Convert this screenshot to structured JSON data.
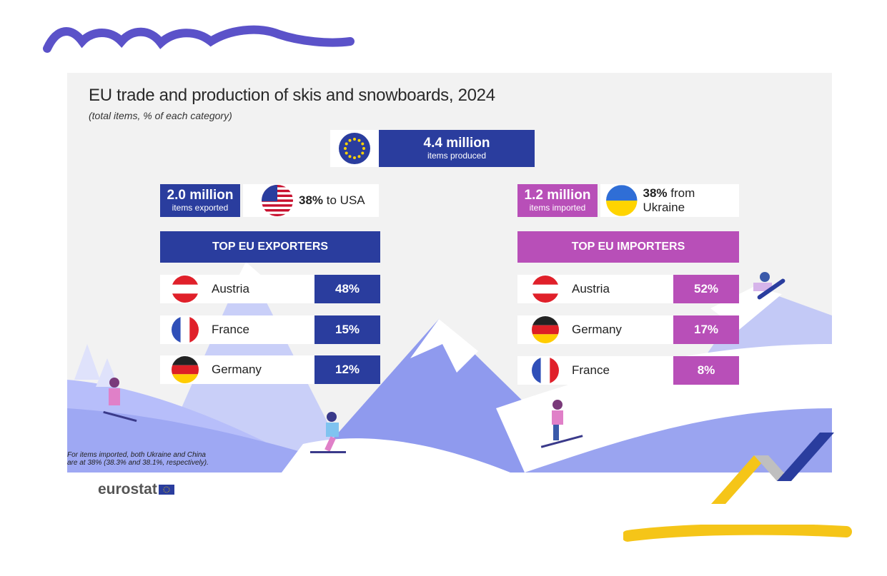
{
  "colors": {
    "eu_blue": "#2a3d9e",
    "import_purple": "#b84fb8",
    "panel_bg": "#f2f2f2",
    "mountain": "#9aa4f0",
    "accent_yellow": "#f5c518"
  },
  "chart_data": {
    "type": "table",
    "title": "EU trade and production of skis and snowboards, 2024",
    "subtitle": "(total items, % of each category)",
    "production": {
      "value_label": "4.4 million",
      "caption": "items produced",
      "flag_icon": "eu-flag-icon"
    },
    "exports": {
      "value_label": "2.0 million",
      "caption": "items exported",
      "top_partner": {
        "percent": "38%",
        "label": "to USA",
        "flag_icon": "usa-flag-icon"
      },
      "header": "TOP EU EXPORTERS",
      "rows": [
        {
          "country": "Austria",
          "percent": "48%",
          "value": 48,
          "flag_icon": "austria-flag-icon"
        },
        {
          "country": "France",
          "percent": "15%",
          "value": 15,
          "flag_icon": "france-flag-icon"
        },
        {
          "country": "Germany",
          "percent": "12%",
          "value": 12,
          "flag_icon": "germany-flag-icon"
        }
      ]
    },
    "imports": {
      "value_label": "1.2 million",
      "caption": "items imported",
      "top_partner": {
        "percent": "38%",
        "label": "from Ukraine",
        "flag_icon": "ukraine-flag-icon"
      },
      "header": "TOP EU IMPORTERS",
      "rows": [
        {
          "country": "Austria",
          "percent": "52%",
          "value": 52,
          "flag_icon": "austria-flag-icon"
        },
        {
          "country": "Germany",
          "percent": "17%",
          "value": 17,
          "flag_icon": "germany-flag-icon"
        },
        {
          "country": "France",
          "percent": "8%",
          "value": 8,
          "flag_icon": "france-flag-icon"
        }
      ]
    },
    "footnote": {
      "line1": "For items imported, both Ukraine and China",
      "line2": "are at 38% (38.3% and 38.1%, respectively)."
    }
  },
  "branding": {
    "logo_text": "eurostat"
  }
}
